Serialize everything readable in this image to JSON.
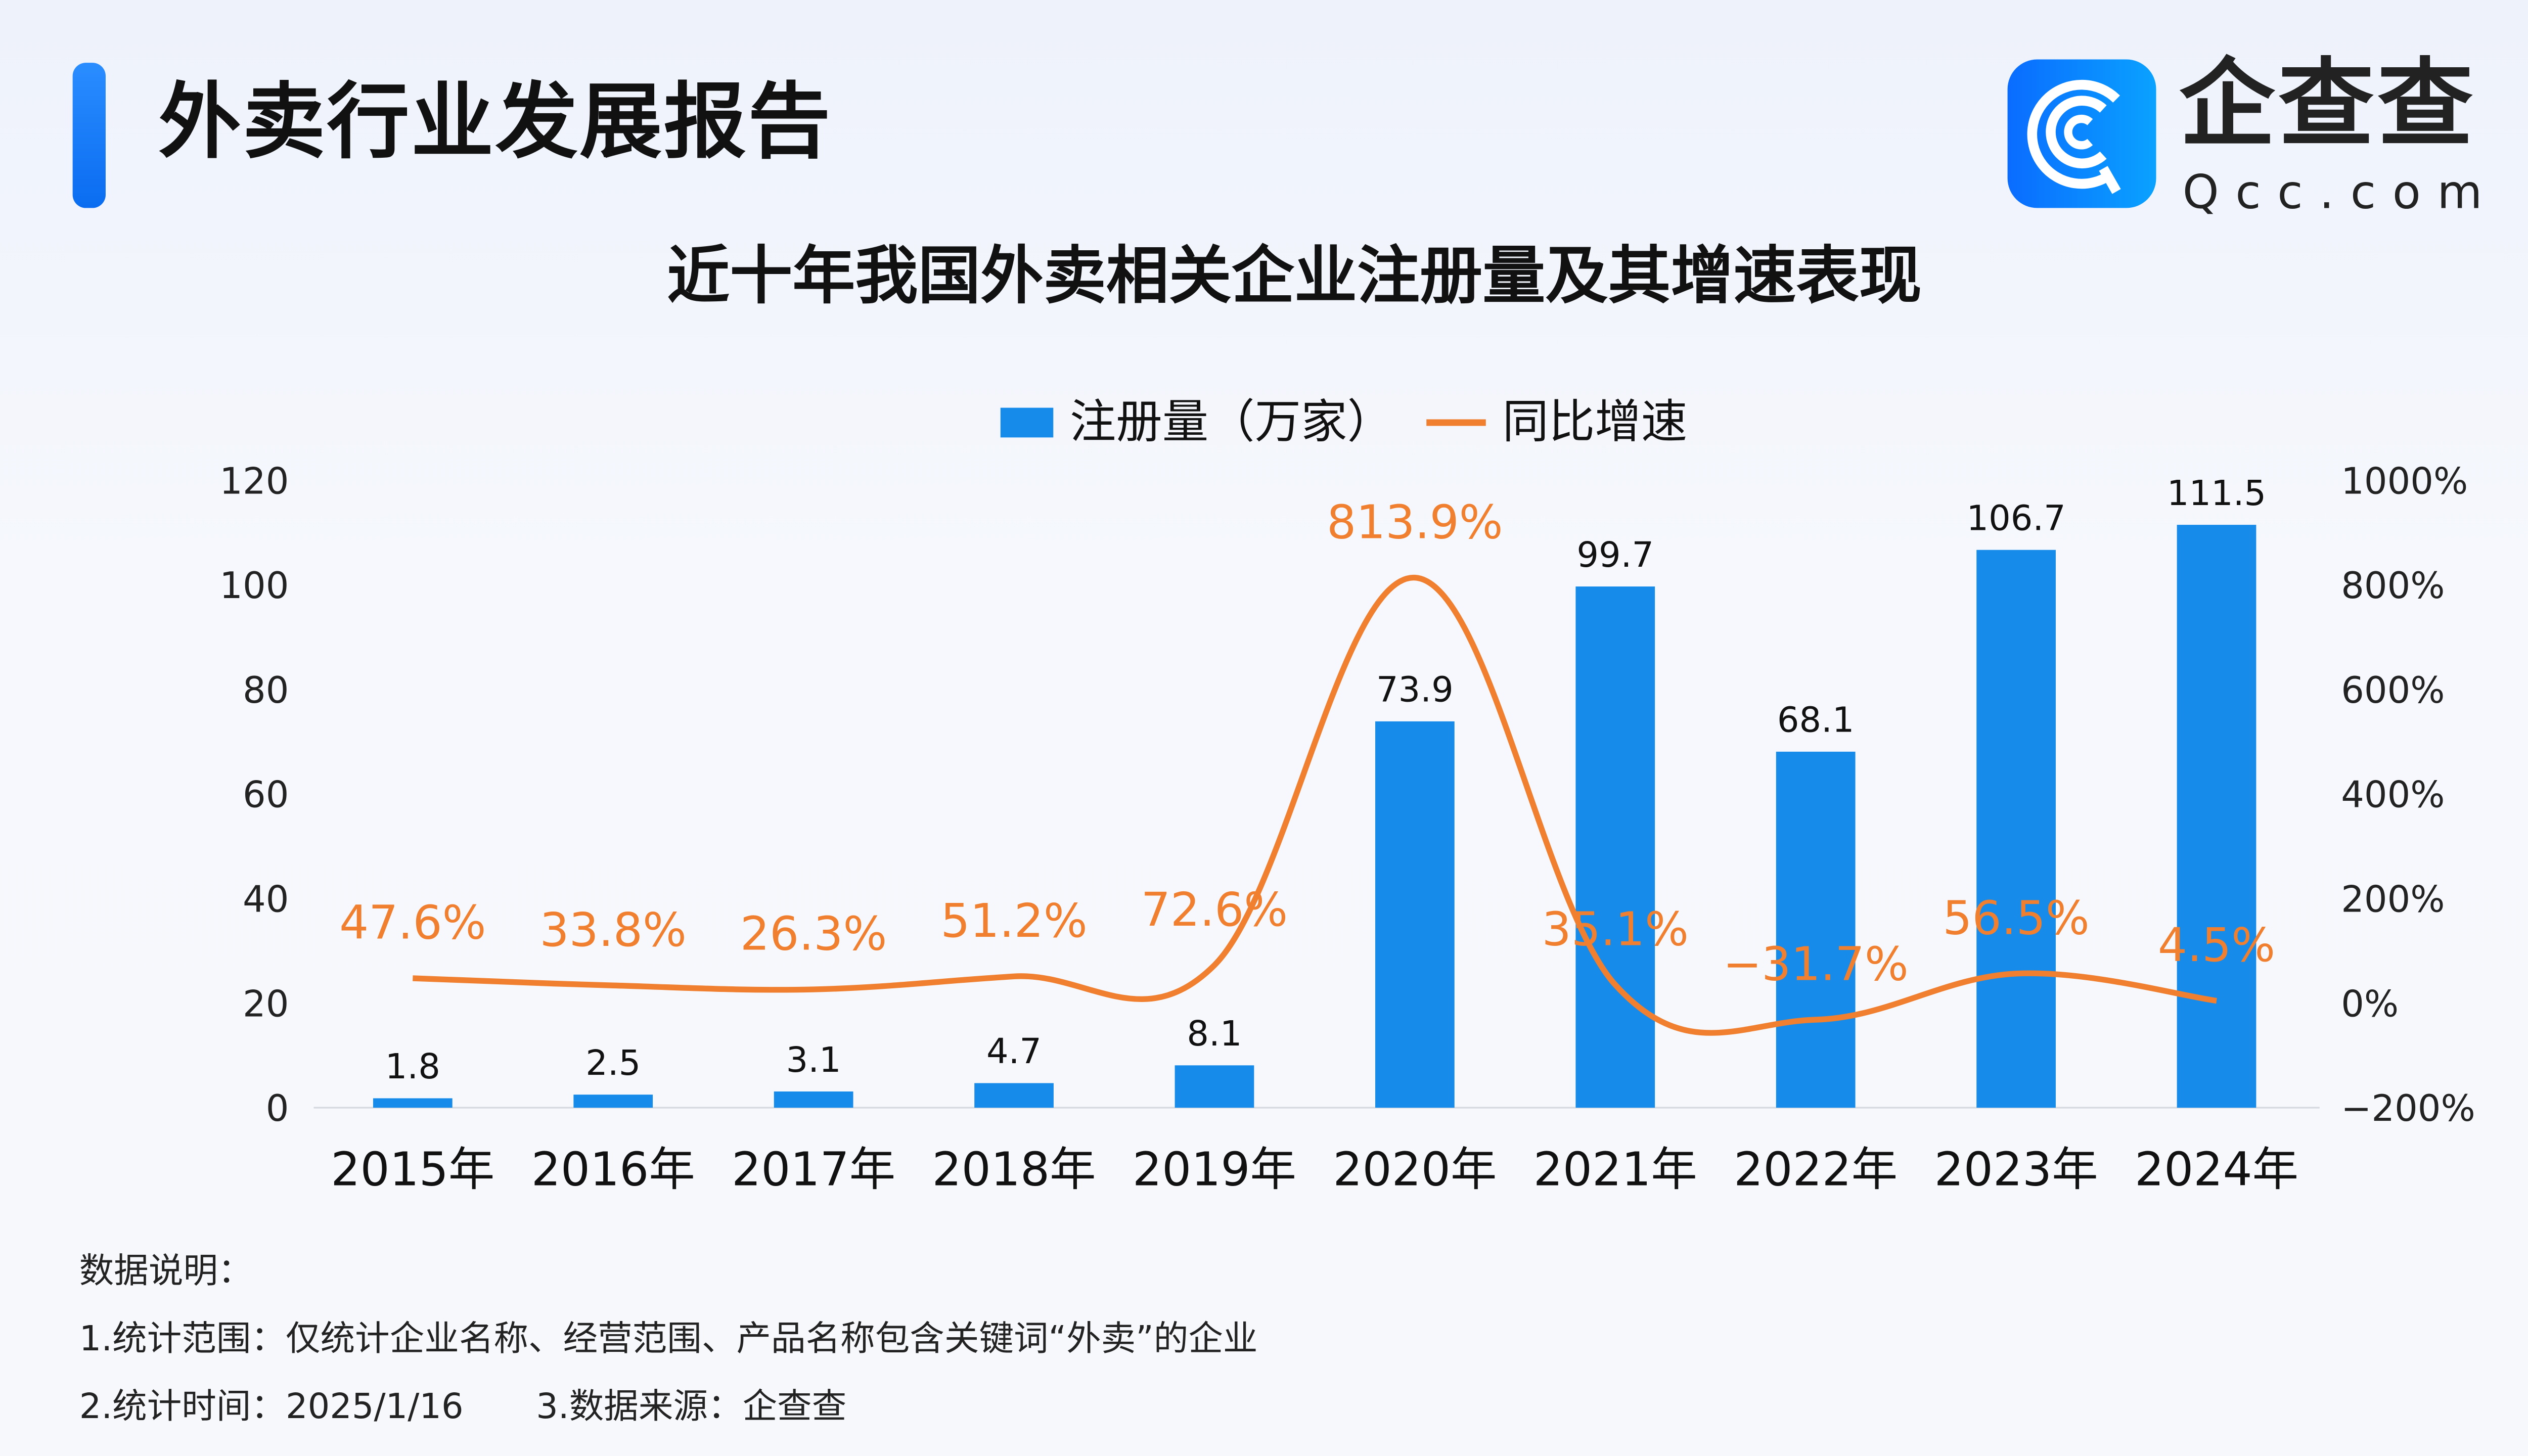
{
  "header": {
    "title": "外卖行业发展报告"
  },
  "logo": {
    "name_cn": "企查查",
    "name_en": "Qcc.com"
  },
  "chart_data": {
    "type": "bar+line",
    "title": "近十年我国外卖相关企业注册量及其增速表现",
    "categories": [
      "2015年",
      "2016年",
      "2017年",
      "2018年",
      "2019年",
      "2020年",
      "2021年",
      "2022年",
      "2023年",
      "2024年"
    ],
    "series": [
      {
        "name": "注册量（万家）",
        "type": "bar",
        "axis": "left",
        "color": "#168be9",
        "values": [
          1.8,
          2.5,
          3.1,
          4.7,
          8.1,
          73.9,
          99.7,
          68.1,
          106.7,
          111.5
        ],
        "labels": [
          "1.8",
          "2.5",
          "3.1",
          "4.7",
          "8.1",
          "73.9",
          "99.7",
          "68.1",
          "106.7",
          "111.5"
        ]
      },
      {
        "name": "同比增速",
        "type": "line",
        "axis": "right",
        "color": "#f0802f",
        "values": [
          47.6,
          33.8,
          26.3,
          51.2,
          72.6,
          813.9,
          35.1,
          -31.7,
          56.5,
          4.5
        ],
        "labels": [
          "47.6%",
          "33.8%",
          "26.3%",
          "51.2%",
          "72.6%",
          "813.9%",
          "35.1%",
          "−31.7%",
          "56.5%",
          "4.5%"
        ]
      }
    ],
    "left_axis": {
      "range": [
        0,
        120
      ],
      "ticks": [
        "0",
        "20",
        "40",
        "60",
        "80",
        "100",
        "120"
      ]
    },
    "right_axis": {
      "range": [
        -200,
        1000
      ],
      "ticks": [
        "−200%",
        "0%",
        "200%",
        "400%",
        "600%",
        "800%",
        "1000%"
      ]
    },
    "legend_position": "top",
    "grid": false
  },
  "notes": {
    "heading": "数据说明：",
    "scope": "1.统计范围：仅统计企业名称、经营范围、产品名称包含关键词“外卖”的企业",
    "time": "2.统计时间：2025/1/16",
    "source": "3.数据来源：企查查"
  }
}
